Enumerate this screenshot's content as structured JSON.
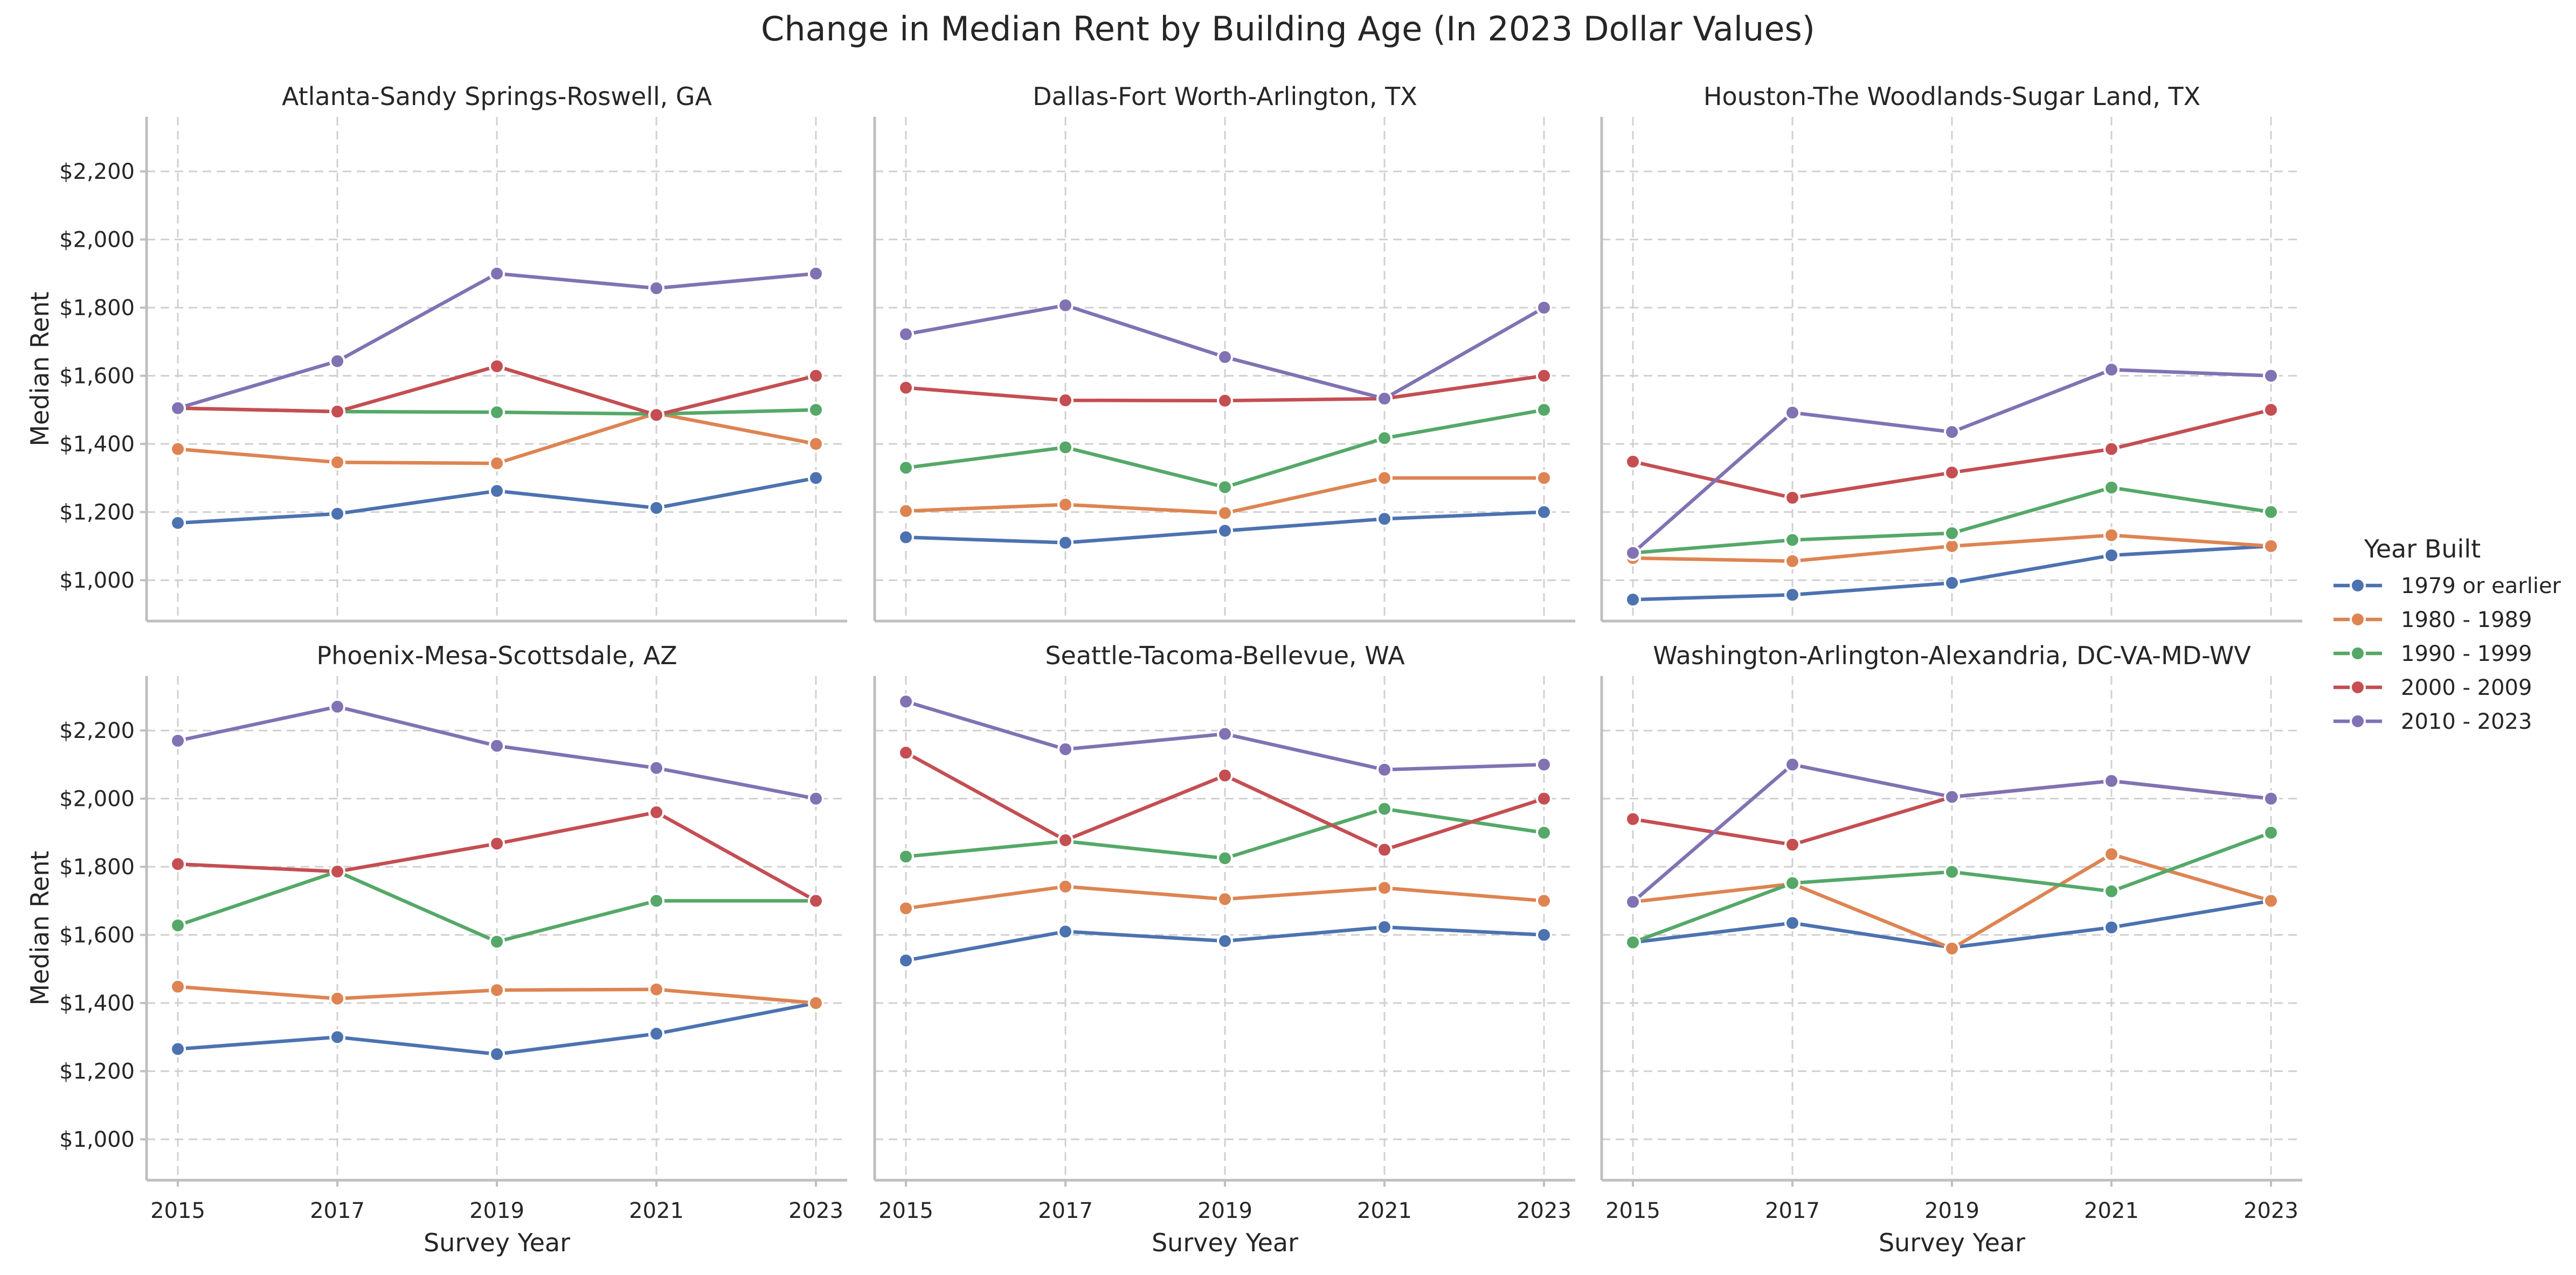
{
  "chart_data": {
    "type": "line",
    "title": "Change in Median Rent by Building Age (In 2023 Dollar Values)",
    "xlabel": "Survey Year",
    "ylabel": "Median Rent",
    "x": [
      2015,
      2017,
      2019,
      2021,
      2023
    ],
    "xticks": [
      "2015",
      "2017",
      "2019",
      "2021",
      "2023"
    ],
    "ylim": [
      880,
      2360
    ],
    "yticks": [
      {
        "value": 1000,
        "label": "$1,000"
      },
      {
        "value": 1200,
        "label": "$1,200"
      },
      {
        "value": 1400,
        "label": "$1,400"
      },
      {
        "value": 1600,
        "label": "$1,600"
      },
      {
        "value": 1800,
        "label": "$1,800"
      },
      {
        "value": 2000,
        "label": "$2,000"
      },
      {
        "value": 2200,
        "label": "$2,200"
      }
    ],
    "grid": true,
    "legend": {
      "title": "Year Built",
      "placement": "right",
      "entries": [
        "1979 or earlier",
        "1980 - 1989",
        "1990 - 1999",
        "2000 - 2009",
        "2010 - 2023"
      ]
    },
    "colors": [
      "#4c72b0",
      "#dd8452",
      "#55a868",
      "#c44e52",
      "#8172b3"
    ],
    "panels": [
      {
        "title": "Atlanta-Sandy Springs-Roswell, GA",
        "series": [
          {
            "name": "1979 or earlier",
            "values": [
              1168,
              1195,
              1262,
              1212,
              1300
            ]
          },
          {
            "name": "1980 - 1989",
            "values": [
              1385,
              1346,
              1343,
              1490,
              1400
            ]
          },
          {
            "name": "1990 - 1999",
            "values": [
              1505,
              1495,
              1493,
              1488,
              1500
            ]
          },
          {
            "name": "2000 - 2009",
            "values": [
              1505,
              1495,
              1628,
              1485,
              1600
            ]
          },
          {
            "name": "2010 - 2023",
            "values": [
              1505,
              1643,
              1900,
              1857,
              1900
            ]
          }
        ]
      },
      {
        "title": "Dallas-Fort Worth-Arlington, TX",
        "series": [
          {
            "name": "1979 or earlier",
            "values": [
              1126,
              1110,
              1145,
              1180,
              1200
            ]
          },
          {
            "name": "1980 - 1989",
            "values": [
              1203,
              1222,
              1197,
              1300,
              1300
            ]
          },
          {
            "name": "1990 - 1999",
            "values": [
              1330,
              1390,
              1273,
              1417,
              1500
            ]
          },
          {
            "name": "2000 - 2009",
            "values": [
              1565,
              1528,
              1527,
              1533,
              1600
            ]
          },
          {
            "name": "2010 - 2023",
            "values": [
              1722,
              1807,
              1655,
              1533,
              1800
            ]
          }
        ]
      },
      {
        "title": "Houston-The Woodlands-Sugar Land, TX",
        "series": [
          {
            "name": "1979 or earlier",
            "values": [
              943,
              957,
              992,
              1073,
              1100
            ]
          },
          {
            "name": "1980 - 1989",
            "values": [
              1065,
              1056,
              1100,
              1132,
              1100
            ]
          },
          {
            "name": "1990 - 1999",
            "values": [
              1080,
              1118,
              1138,
              1272,
              1200
            ]
          },
          {
            "name": "2000 - 2009",
            "values": [
              1348,
              1242,
              1316,
              1385,
              1500
            ]
          },
          {
            "name": "2010 - 2023",
            "values": [
              1080,
              1492,
              1435,
              1618,
              1600
            ]
          }
        ]
      },
      {
        "title": "Phoenix-Mesa-Scottsdale, AZ",
        "series": [
          {
            "name": "1979 or earlier",
            "values": [
              1265,
              1300,
              1250,
              1310,
              1400
            ]
          },
          {
            "name": "1980 - 1989",
            "values": [
              1448,
              1413,
              1438,
              1440,
              1400
            ]
          },
          {
            "name": "1990 - 1999",
            "values": [
              1628,
              1786,
              1580,
              1700,
              1700
            ]
          },
          {
            "name": "2000 - 2009",
            "values": [
              1808,
              1786,
              1868,
              1960,
              1700
            ]
          },
          {
            "name": "2010 - 2023",
            "values": [
              2170,
              2270,
              2155,
              2090,
              2000
            ]
          }
        ]
      },
      {
        "title": "Seattle-Tacoma-Bellevue, WA",
        "series": [
          {
            "name": "1979 or earlier",
            "values": [
              1525,
              1610,
              1582,
              1623,
              1600
            ]
          },
          {
            "name": "1980 - 1989",
            "values": [
              1678,
              1742,
              1705,
              1738,
              1700
            ]
          },
          {
            "name": "1990 - 1999",
            "values": [
              1830,
              1875,
              1825,
              1970,
              1900
            ]
          },
          {
            "name": "2000 - 2009",
            "values": [
              2135,
              1878,
              2068,
              1850,
              2000
            ]
          },
          {
            "name": "2010 - 2023",
            "values": [
              2285,
              2145,
              2190,
              2085,
              2100
            ]
          }
        ]
      },
      {
        "title": "Washington-Arlington-Alexandria, DC-VA-MD-WV",
        "series": [
          {
            "name": "1979 or earlier",
            "values": [
              1578,
              1635,
              1563,
              1622,
              1700
            ]
          },
          {
            "name": "1980 - 1989",
            "values": [
              1697,
              1750,
              1560,
              1837,
              1700
            ]
          },
          {
            "name": "1990 - 1999",
            "values": [
              1578,
              1752,
              1785,
              1728,
              1900
            ]
          },
          {
            "name": "2000 - 2009",
            "values": [
              1940,
              1865,
              2005,
              2052,
              2000
            ]
          },
          {
            "name": "2010 - 2023",
            "values": [
              1697,
              2100,
              2005,
              2052,
              2000
            ]
          }
        ]
      }
    ]
  }
}
